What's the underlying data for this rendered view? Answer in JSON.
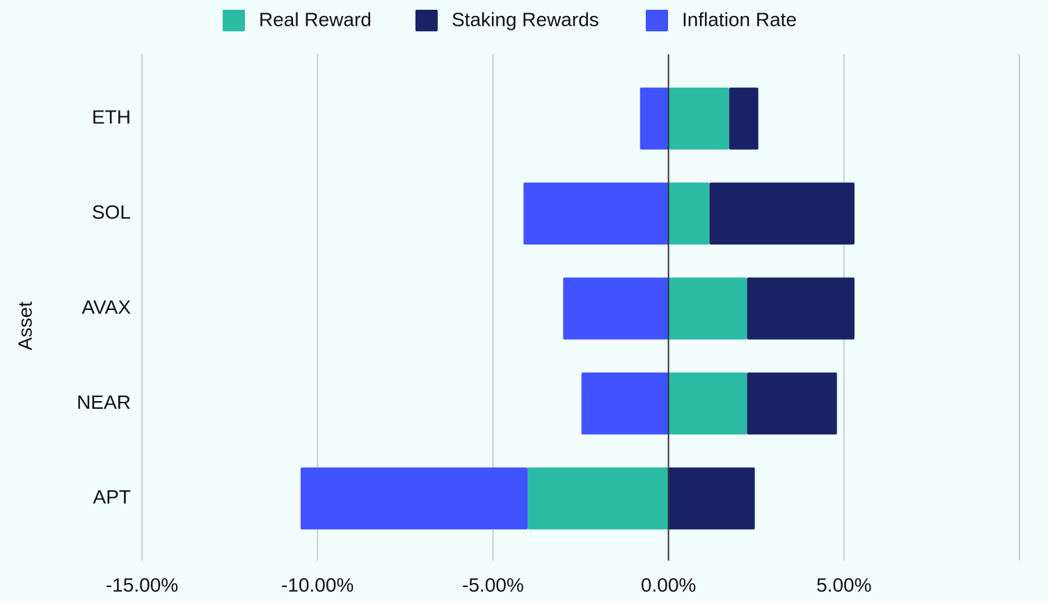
{
  "chart_data": {
    "type": "stacked-barh",
    "y_label": "Asset",
    "categories": [
      "ETH",
      "SOL",
      "AVAX",
      "NEAR",
      "APT"
    ],
    "series": [
      {
        "name": "Real Reward",
        "color": "#2bbba4",
        "values": [
          1.73,
          1.17,
          2.24,
          2.24,
          -4.01
        ]
      },
      {
        "name": "Staking Rewards",
        "color": "#1a2266",
        "values": [
          0.83,
          4.13,
          3.06,
          2.56,
          2.46
        ]
      },
      {
        "name": "Inflation Rate",
        "color": "#4053ff",
        "values": [
          -0.81,
          -4.13,
          -3.0,
          -2.48,
          -6.47
        ]
      }
    ],
    "xlim": [
      -15,
      10
    ],
    "xticks": [
      {
        "value": -15,
        "label": "-15.00%"
      },
      {
        "value": -10,
        "label": "-10.00%"
      },
      {
        "value": -5,
        "label": "-5.00%"
      },
      {
        "value": 0,
        "label": "0.00%"
      },
      {
        "value": 5,
        "label": "5.00%"
      }
    ],
    "grid": true,
    "legend": "top"
  }
}
